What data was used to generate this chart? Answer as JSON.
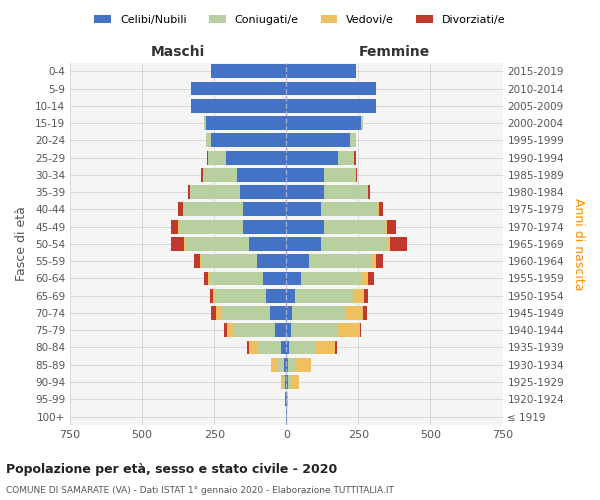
{
  "age_groups": [
    "100+",
    "95-99",
    "90-94",
    "85-89",
    "80-84",
    "75-79",
    "70-74",
    "65-69",
    "60-64",
    "55-59",
    "50-54",
    "45-49",
    "40-44",
    "35-39",
    "30-34",
    "25-29",
    "20-24",
    "15-19",
    "10-14",
    "5-9",
    "0-4"
  ],
  "birth_years": [
    "≤ 1919",
    "1920-1924",
    "1925-1929",
    "1930-1934",
    "1935-1939",
    "1940-1944",
    "1945-1949",
    "1950-1954",
    "1955-1959",
    "1960-1964",
    "1965-1969",
    "1970-1974",
    "1975-1979",
    "1980-1984",
    "1985-1989",
    "1990-1994",
    "1995-1999",
    "2000-2004",
    "2005-2009",
    "2010-2014",
    "2015-2019"
  ],
  "colors": {
    "celibi": "#4472c4",
    "coniugati": "#b8cfa0",
    "vedovi": "#f0c060",
    "divorziati": "#c0392b"
  },
  "maschi": {
    "celibi": [
      2,
      3,
      5,
      8,
      20,
      40,
      55,
      70,
      80,
      100,
      130,
      150,
      150,
      160,
      170,
      210,
      260,
      280,
      330,
      330,
      260
    ],
    "coniugati": [
      0,
      0,
      5,
      25,
      80,
      140,
      170,
      175,
      185,
      195,
      220,
      220,
      210,
      175,
      120,
      60,
      20,
      5,
      2,
      0,
      0
    ],
    "vedovi": [
      0,
      0,
      10,
      20,
      30,
      25,
      20,
      10,
      5,
      5,
      5,
      5,
      0,
      0,
      0,
      0,
      0,
      0,
      0,
      0,
      0
    ],
    "divorziati": [
      0,
      0,
      0,
      0,
      5,
      10,
      15,
      10,
      15,
      20,
      45,
      25,
      15,
      5,
      5,
      5,
      0,
      0,
      0,
      0,
      0
    ]
  },
  "femmine": {
    "celibi": [
      2,
      2,
      5,
      5,
      10,
      15,
      20,
      30,
      50,
      80,
      120,
      130,
      120,
      130,
      130,
      180,
      220,
      260,
      310,
      310,
      240
    ],
    "coniugati": [
      0,
      0,
      10,
      30,
      90,
      160,
      185,
      200,
      210,
      215,
      230,
      215,
      195,
      155,
      110,
      55,
      20,
      5,
      2,
      0,
      0
    ],
    "vedovi": [
      2,
      5,
      30,
      50,
      70,
      80,
      60,
      40,
      25,
      15,
      10,
      5,
      5,
      0,
      0,
      0,
      0,
      0,
      0,
      0,
      0
    ],
    "divorziati": [
      0,
      0,
      0,
      0,
      5,
      5,
      15,
      15,
      20,
      25,
      60,
      30,
      15,
      5,
      5,
      5,
      0,
      0,
      0,
      0,
      0
    ]
  },
  "title": "Popolazione per età, sesso e stato civile - 2020",
  "subtitle": "COMUNE DI SAMARATE (VA) - Dati ISTAT 1° gennaio 2020 - Elaborazione TUTTITALIA.IT",
  "xlabel_left": "Maschi",
  "xlabel_right": "Femmine",
  "ylabel_left": "Fasce di età",
  "ylabel_right": "Anni di nascita",
  "xlim": 750,
  "legend_labels": [
    "Celibi/Nubili",
    "Coniugati/e",
    "Vedovi/e",
    "Divorziati/e"
  ],
  "background_color": "#ffffff"
}
